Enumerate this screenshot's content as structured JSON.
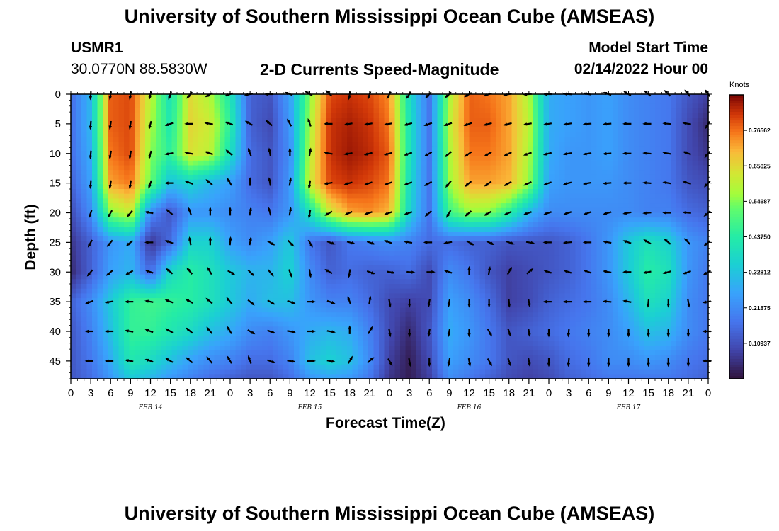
{
  "page": {
    "title": "University of Southern Mississippi Ocean Cube (AMSEAS)",
    "title_repeat": "University of Southern Mississippi Ocean Cube (AMSEAS)",
    "station_id": "USMR1",
    "coordinates": "30.0770N  88.5830W",
    "subtitle": "2-D Currents Speed-Magnitude",
    "model_start_label": "Model Start Time",
    "model_start_value": "02/14/2022 Hour 00"
  },
  "chart_data": {
    "type": "heatmap",
    "title": "2-D Currents Speed-Magnitude",
    "xlabel": "Forecast Time(Z)",
    "ylabel": "Depth (ft)",
    "x_tick_labels": [
      "0",
      "3",
      "6",
      "9",
      "12",
      "15",
      "18",
      "21",
      "0",
      "3",
      "6",
      "9",
      "12",
      "15",
      "18",
      "21",
      "0",
      "3",
      "6",
      "9",
      "12",
      "15",
      "18",
      "21",
      "0",
      "3",
      "6",
      "9",
      "12",
      "15",
      "18",
      "21",
      "0"
    ],
    "x_hours_range": [
      0,
      96
    ],
    "date_labels": [
      {
        "text": "FEB 14",
        "hour": 12
      },
      {
        "text": "FEB 15",
        "hour": 36
      },
      {
        "text": "FEB 16",
        "hour": 60
      },
      {
        "text": "FEB 17",
        "hour": 84
      }
    ],
    "y_ticks": [
      "0",
      "5",
      "10",
      "15",
      "20",
      "25",
      "30",
      "35",
      "40",
      "45"
    ],
    "y_range_ft": [
      0,
      48
    ],
    "y_inverted": true,
    "colorbar": {
      "unit": "Knots",
      "range": [
        0,
        0.875
      ],
      "tick_labels": [
        "0.76562",
        "0.65625",
        "0.54687",
        "0.43750",
        "0.32812",
        "0.21875",
        "0.10937"
      ],
      "tick_values": [
        0.76562,
        0.65625,
        0.54687,
        0.4375,
        0.32812,
        0.21875,
        0.10937
      ]
    },
    "speed_field_knots": {
      "depth_levels_ft": [
        0,
        5,
        10,
        15,
        20,
        25,
        30,
        35,
        40,
        45,
        48
      ],
      "hours": [
        0,
        3,
        6,
        9,
        12,
        15,
        18,
        21,
        24,
        27,
        30,
        33,
        36,
        39,
        42,
        45,
        48,
        51,
        54,
        57,
        60,
        63,
        66,
        69,
        72,
        75,
        78,
        81,
        84,
        87,
        90,
        93,
        96
      ],
      "values": [
        [
          0.16,
          0.3,
          0.78,
          0.8,
          0.6,
          0.4,
          0.65,
          0.58,
          0.42,
          0.14,
          0.12,
          0.26,
          0.55,
          0.8,
          0.82,
          0.8,
          0.74,
          0.38,
          0.18,
          0.58,
          0.78,
          0.76,
          0.72,
          0.58,
          0.28,
          0.26,
          0.24,
          0.26,
          0.22,
          0.2,
          0.18,
          0.12,
          0.08
        ],
        [
          0.16,
          0.3,
          0.78,
          0.8,
          0.58,
          0.42,
          0.66,
          0.62,
          0.45,
          0.14,
          0.1,
          0.24,
          0.58,
          0.82,
          0.84,
          0.82,
          0.76,
          0.4,
          0.18,
          0.6,
          0.78,
          0.78,
          0.72,
          0.6,
          0.28,
          0.26,
          0.24,
          0.26,
          0.22,
          0.2,
          0.18,
          0.1,
          0.04
        ],
        [
          0.16,
          0.28,
          0.76,
          0.8,
          0.55,
          0.45,
          0.64,
          0.6,
          0.4,
          0.16,
          0.12,
          0.22,
          0.6,
          0.82,
          0.85,
          0.83,
          0.78,
          0.4,
          0.18,
          0.58,
          0.76,
          0.76,
          0.72,
          0.58,
          0.28,
          0.24,
          0.24,
          0.26,
          0.22,
          0.2,
          0.18,
          0.1,
          0.06
        ],
        [
          0.14,
          0.26,
          0.72,
          0.76,
          0.52,
          0.32,
          0.36,
          0.3,
          0.26,
          0.16,
          0.12,
          0.24,
          0.62,
          0.8,
          0.82,
          0.8,
          0.76,
          0.38,
          0.18,
          0.56,
          0.72,
          0.72,
          0.7,
          0.56,
          0.26,
          0.24,
          0.24,
          0.24,
          0.22,
          0.2,
          0.18,
          0.12,
          0.1
        ],
        [
          0.1,
          0.22,
          0.55,
          0.62,
          0.22,
          0.12,
          0.24,
          0.24,
          0.22,
          0.2,
          0.18,
          0.24,
          0.4,
          0.62,
          0.72,
          0.74,
          0.7,
          0.36,
          0.18,
          0.48,
          0.56,
          0.55,
          0.45,
          0.3,
          0.22,
          0.22,
          0.22,
          0.22,
          0.22,
          0.2,
          0.2,
          0.16,
          0.14
        ],
        [
          0.06,
          0.14,
          0.24,
          0.28,
          0.06,
          0.16,
          0.36,
          0.36,
          0.26,
          0.22,
          0.26,
          0.34,
          0.18,
          0.12,
          0.18,
          0.2,
          0.22,
          0.2,
          0.16,
          0.16,
          0.14,
          0.14,
          0.12,
          0.12,
          0.12,
          0.14,
          0.18,
          0.24,
          0.34,
          0.4,
          0.36,
          0.24,
          0.2
        ],
        [
          0.04,
          0.14,
          0.26,
          0.3,
          0.16,
          0.38,
          0.44,
          0.4,
          0.34,
          0.3,
          0.3,
          0.36,
          0.22,
          0.14,
          0.16,
          0.14,
          0.14,
          0.16,
          0.1,
          0.22,
          0.18,
          0.12,
          0.08,
          0.1,
          0.12,
          0.14,
          0.18,
          0.24,
          0.34,
          0.44,
          0.4,
          0.24,
          0.18
        ],
        [
          0.14,
          0.22,
          0.34,
          0.46,
          0.48,
          0.46,
          0.44,
          0.4,
          0.34,
          0.28,
          0.32,
          0.32,
          0.24,
          0.2,
          0.2,
          0.16,
          0.1,
          0.08,
          0.1,
          0.26,
          0.22,
          0.16,
          0.08,
          0.1,
          0.14,
          0.16,
          0.18,
          0.22,
          0.3,
          0.4,
          0.36,
          0.22,
          0.18
        ],
        [
          0.12,
          0.2,
          0.32,
          0.46,
          0.46,
          0.42,
          0.38,
          0.32,
          0.28,
          0.22,
          0.2,
          0.24,
          0.28,
          0.3,
          0.28,
          0.2,
          0.1,
          0.04,
          0.12,
          0.28,
          0.24,
          0.18,
          0.12,
          0.14,
          0.16,
          0.18,
          0.2,
          0.22,
          0.26,
          0.32,
          0.3,
          0.22,
          0.18
        ],
        [
          0.12,
          0.18,
          0.28,
          0.42,
          0.38,
          0.32,
          0.26,
          0.22,
          0.2,
          0.16,
          0.16,
          0.2,
          0.32,
          0.36,
          0.32,
          0.22,
          0.08,
          0.02,
          0.1,
          0.26,
          0.22,
          0.18,
          0.12,
          0.1,
          0.12,
          0.16,
          0.18,
          0.22,
          0.22,
          0.24,
          0.22,
          0.18,
          0.16
        ],
        [
          0.12,
          0.16,
          0.24,
          0.34,
          0.3,
          0.24,
          0.2,
          0.16,
          0.14,
          0.12,
          0.12,
          0.16,
          0.24,
          0.26,
          0.24,
          0.18,
          0.06,
          0.02,
          0.08,
          0.22,
          0.18,
          0.14,
          0.1,
          0.08,
          0.1,
          0.14,
          0.16,
          0.18,
          0.18,
          0.18,
          0.18,
          0.16,
          0.14
        ]
      ]
    },
    "current_vectors_deg": {
      "note": "arrow direction in screen degrees (0 = right, 90 = down)",
      "depth_levels_ft": [
        0,
        5,
        10,
        15,
        20,
        25,
        30,
        35,
        40,
        45
      ],
      "hours": [
        3,
        6,
        9,
        12,
        15,
        18,
        21,
        24,
        27,
        30,
        33,
        36,
        39,
        42,
        45,
        48,
        51,
        54,
        57,
        60,
        63,
        66,
        69,
        72,
        75,
        78,
        81,
        84,
        87,
        90,
        93,
        96
      ],
      "values": [
        [
          95,
          100,
          100,
          105,
          110,
          130,
          150,
          160,
          170,
          180,
          200,
          210,
          225,
          100,
          110,
          120,
          125,
          135,
          140,
          150,
          160,
          170,
          175,
          180,
          185,
          190,
          200,
          210,
          220,
          225,
          230,
          235
        ],
        [
          95,
          100,
          100,
          105,
          160,
          180,
          190,
          200,
          210,
          220,
          240,
          250,
          180,
          170,
          170,
          170,
          165,
          160,
          160,
          160,
          165,
          165,
          170,
          170,
          170,
          175,
          175,
          180,
          180,
          185,
          190,
          120
        ],
        [
          95,
          100,
          100,
          105,
          170,
          190,
          200,
          220,
          250,
          260,
          270,
          280,
          190,
          170,
          165,
          165,
          160,
          150,
          140,
          145,
          150,
          155,
          160,
          165,
          170,
          170,
          175,
          180,
          185,
          190,
          200,
          130
        ],
        [
          95,
          100,
          100,
          110,
          180,
          200,
          220,
          240,
          270,
          260,
          280,
          100,
          170,
          165,
          160,
          160,
          160,
          150,
          130,
          140,
          145,
          150,
          155,
          160,
          165,
          170,
          175,
          180,
          185,
          190,
          195,
          135
        ],
        [
          110,
          120,
          130,
          190,
          220,
          250,
          270,
          270,
          280,
          255,
          280,
          100,
          150,
          155,
          160,
          160,
          160,
          140,
          120,
          140,
          150,
          155,
          160,
          160,
          160,
          160,
          165,
          170,
          175,
          180,
          185,
          140
        ],
        [
          120,
          130,
          140,
          180,
          200,
          260,
          270,
          275,
          280,
          30,
          45,
          60,
          20,
          15,
          20,
          200,
          190,
          180,
          170,
          30,
          25,
          20,
          10,
          180,
          175,
          180,
          190,
          200,
          210,
          220,
          225,
          140
        ],
        [
          130,
          140,
          150,
          200,
          220,
          230,
          240,
          30,
          45,
          50,
          70,
          80,
          210,
          100,
          20,
          10,
          5,
          0,
          200,
          270,
          280,
          300,
          320,
          200,
          200,
          200,
          190,
          180,
          170,
          165,
          160,
          150
        ],
        [
          160,
          170,
          180,
          190,
          200,
          210,
          220,
          230,
          40,
          30,
          20,
          0,
          20,
          250,
          280,
          80,
          90,
          100,
          100,
          90,
          90,
          85,
          80,
          180,
          180,
          180,
          185,
          190,
          95,
          90,
          80,
          170
        ],
        [
          180,
          180,
          190,
          200,
          210,
          220,
          230,
          240,
          30,
          20,
          10,
          0,
          10,
          270,
          300,
          80,
          90,
          100,
          100,
          90,
          60,
          70,
          80,
          90,
          95,
          90,
          90,
          90,
          90,
          90,
          90,
          180
        ],
        [
          180,
          180,
          190,
          200,
          210,
          220,
          230,
          240,
          250,
          20,
          10,
          0,
          10,
          300,
          320,
          60,
          80,
          90,
          100,
          80,
          60,
          70,
          80,
          90,
          95,
          90,
          90,
          90,
          90,
          90,
          90,
          180
        ]
      ]
    }
  }
}
